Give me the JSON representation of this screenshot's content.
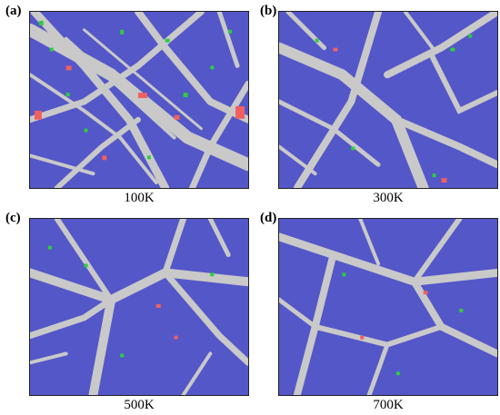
{
  "figure": {
    "panels": [
      {
        "letter": "(a)",
        "label": "100K"
      },
      {
        "letter": "(b)",
        "label": "300K"
      },
      {
        "letter": "(c)",
        "label": "500K"
      },
      {
        "letter": "(d)",
        "label": "700K"
      }
    ],
    "colors": {
      "crystal": "#5457c8",
      "boundary": "#c9c9c9",
      "defect_green": "#2ecc40",
      "defect_red": "#f06060",
      "frame": "#222222"
    }
  }
}
